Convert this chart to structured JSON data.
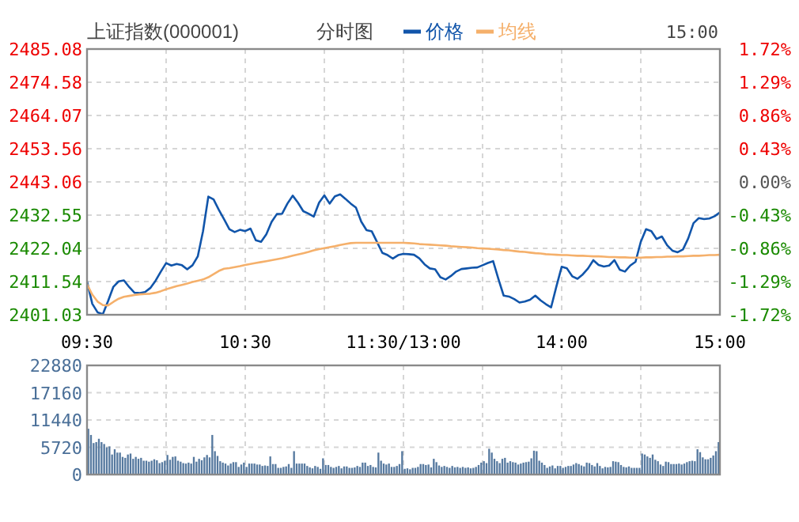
{
  "chart_data": [
    {
      "type": "line",
      "title": "上证指数(000001)",
      "subtitle": "分时图",
      "legend": "top",
      "grid": true,
      "marker": "none",
      "line_style": "solid",
      "annotations": [
        "15:00"
      ],
      "categories": [
        "09:30",
        null,
        null,
        null,
        null,
        null,
        null,
        null,
        null,
        null,
        null,
        null,
        null,
        null,
        null,
        null,
        null,
        null,
        null,
        null,
        null,
        null,
        null,
        null,
        null,
        null,
        null,
        null,
        null,
        null,
        "10:30",
        null,
        null,
        null,
        null,
        null,
        null,
        null,
        null,
        null,
        null,
        null,
        null,
        null,
        null,
        null,
        null,
        null,
        null,
        null,
        null,
        null,
        null,
        null,
        null,
        null,
        null,
        null,
        null,
        null,
        "11:30/13:00",
        null,
        null,
        null,
        null,
        null,
        null,
        null,
        null,
        null,
        null,
        null,
        null,
        null,
        null,
        null,
        null,
        null,
        null,
        null,
        null,
        null,
        null,
        null,
        null,
        null,
        null,
        null,
        null,
        null,
        "14:00",
        null,
        null,
        null,
        null,
        null,
        null,
        null,
        null,
        null,
        null,
        null,
        null,
        null,
        null,
        null,
        null,
        null,
        null,
        null,
        null,
        null,
        null,
        null,
        null,
        null,
        null,
        null,
        null,
        null,
        "15:00"
      ],
      "ylim": [
        2401.03,
        2485.08
      ],
      "yticks": [
        2401.03,
        2411.54,
        2422.04,
        2432.55,
        2443.06,
        2453.56,
        2464.07,
        2474.58,
        2485.08
      ],
      "y2lim": [
        -1.72,
        1.72
      ],
      "y2ticks": [
        {
          "value": -1.72,
          "label": "-1.72%"
        },
        {
          "value": -1.29,
          "label": "-1.29%"
        },
        {
          "value": -0.86,
          "label": "-0.86%"
        },
        {
          "value": -0.43,
          "label": "-0.43%"
        },
        {
          "value": 0,
          "label": "0.00%"
        },
        {
          "value": 0.43,
          "label": "0.43%"
        },
        {
          "value": 0.86,
          "label": "0.86%"
        },
        {
          "value": 1.29,
          "label": "1.29%"
        },
        {
          "value": 1.72,
          "label": "1.72%"
        }
      ],
      "series": [
        {
          "name": "价格",
          "color": "#1155aa",
          "values": [
            2411.6,
            2404.5,
            2401.8,
            2401.2,
            2405.4,
            2409.9,
            2411.6,
            2411.9,
            2409.8,
            2408.0,
            2407.9,
            2408.2,
            2409.5,
            2411.8,
            2414.7,
            2417.4,
            2416.6,
            2417.1,
            2416.7,
            2415.4,
            2416.7,
            2419.5,
            2427.5,
            2438.4,
            2437.5,
            2434.2,
            2431.2,
            2428.1,
            2427.2,
            2427.9,
            2427.5,
            2428.3,
            2424.6,
            2424.1,
            2426.5,
            2430.4,
            2432.9,
            2433.0,
            2436.2,
            2438.7,
            2436.5,
            2433.8,
            2433.0,
            2432.1,
            2436.5,
            2438.8,
            2436.2,
            2438.5,
            2439.1,
            2437.7,
            2436.2,
            2434.9,
            2430.5,
            2427.8,
            2427.4,
            2424.0,
            2420.6,
            2419.9,
            2418.8,
            2419.9,
            2420.3,
            2420.2,
            2420.0,
            2418.9,
            2417.0,
            2415.7,
            2415.4,
            2412.9,
            2412.2,
            2413.3,
            2414.7,
            2415.5,
            2415.7,
            2415.9,
            2416.0,
            2416.7,
            2417.4,
            2418.0,
            2412.4,
            2407.1,
            2406.8,
            2406.0,
            2404.9,
            2405.2,
            2405.8,
            2407.1,
            2405.6,
            2404.4,
            2403.4,
            2410.0,
            2416.2,
            2415.7,
            2413.2,
            2412.4,
            2413.8,
            2415.7,
            2418.3,
            2416.8,
            2416.3,
            2416.6,
            2418.3,
            2415.3,
            2414.7,
            2416.6,
            2417.8,
            2424.1,
            2428.1,
            2427.5,
            2425.0,
            2425.8,
            2423.0,
            2421.3,
            2420.8,
            2421.7,
            2425.2,
            2430.0,
            2431.6,
            2431.3,
            2431.5,
            2432.2,
            2433.4
          ]
        },
        {
          "name": "均线",
          "color": "#f5b06b",
          "values": [
            2410.7,
            2407.4,
            2405.2,
            2404.1,
            2404.0,
            2405.1,
            2406.1,
            2406.7,
            2407.0,
            2407.3,
            2407.5,
            2407.6,
            2407.7,
            2408.0,
            2408.5,
            2409.1,
            2409.6,
            2410.1,
            2410.5,
            2410.9,
            2411.4,
            2411.8,
            2412.2,
            2412.9,
            2413.9,
            2414.9,
            2415.6,
            2415.8,
            2416.1,
            2416.4,
            2416.8,
            2417.1,
            2417.4,
            2417.7,
            2418.0,
            2418.3,
            2418.6,
            2418.9,
            2419.3,
            2419.7,
            2420.1,
            2420.5,
            2420.9,
            2421.4,
            2421.8,
            2422.1,
            2422.4,
            2422.7,
            2423.1,
            2423.4,
            2423.7,
            2423.8,
            2423.8,
            2423.8,
            2423.8,
            2423.8,
            2423.8,
            2423.8,
            2423.8,
            2423.8,
            2423.8,
            2423.7,
            2423.6,
            2423.4,
            2423.3,
            2423.2,
            2423.1,
            2423.0,
            2422.9,
            2422.7,
            2422.6,
            2422.5,
            2422.4,
            2422.3,
            2422.1,
            2422.0,
            2421.9,
            2421.8,
            2421.7,
            2421.5,
            2421.4,
            2421.2,
            2421.0,
            2420.9,
            2420.7,
            2420.5,
            2420.4,
            2420.2,
            2420.1,
            2420.0,
            2419.9,
            2419.9,
            2419.8,
            2419.7,
            2419.7,
            2419.6,
            2419.5,
            2419.5,
            2419.4,
            2419.3,
            2419.3,
            2419.2,
            2419.2,
            2419.1,
            2419.1,
            2419.1,
            2419.2,
            2419.2,
            2419.3,
            2419.3,
            2419.4,
            2419.4,
            2419.5,
            2419.5,
            2419.6,
            2419.7,
            2419.7,
            2419.8,
            2419.9,
            2419.9,
            2420.0
          ]
        }
      ]
    },
    {
      "type": "bar",
      "grid": true,
      "tick_labels": "y",
      "ylim": [
        0,
        22880
      ],
      "yticks": [
        0,
        5720,
        11440,
        17160,
        22880
      ],
      "categories": [
        null,
        null,
        null,
        null,
        null,
        null,
        null,
        null,
        null,
        null,
        null,
        null,
        null,
        null,
        null,
        null,
        null,
        null,
        null,
        null,
        null,
        null,
        null,
        null,
        null,
        null,
        null,
        null,
        null,
        null,
        null,
        null,
        null,
        null,
        null,
        null,
        null,
        null,
        null,
        null,
        null,
        null,
        null,
        null,
        null,
        null,
        null,
        null,
        null,
        null,
        null,
        null,
        null,
        null,
        null,
        null,
        null,
        null,
        null,
        null,
        null,
        null,
        null,
        null,
        null,
        null,
        null,
        null,
        null,
        null,
        null,
        null,
        null,
        null,
        null,
        null,
        null,
        null,
        null,
        null,
        null,
        null,
        null,
        null,
        null,
        null,
        null,
        null,
        null,
        null,
        null,
        null,
        null,
        null,
        null,
        null,
        null,
        null,
        null,
        null,
        null,
        null,
        null,
        null,
        null,
        null,
        null,
        null,
        null,
        null,
        null,
        null,
        null,
        null,
        null,
        null,
        null,
        null,
        null,
        null,
        null,
        null,
        null,
        null,
        null,
        null,
        null,
        null,
        null,
        null,
        null,
        null,
        null,
        null,
        null,
        null,
        null,
        null,
        null,
        null,
        null,
        null,
        null,
        null,
        null,
        null,
        null,
        null,
        null,
        null,
        null,
        null,
        null,
        null,
        null,
        null,
        null,
        null,
        null,
        null,
        null,
        null,
        null,
        null,
        null,
        null,
        null,
        null,
        null,
        null,
        null,
        null,
        null,
        null,
        null,
        null,
        null,
        null,
        null,
        null,
        null,
        null,
        null,
        null,
        null,
        null,
        null,
        null,
        null,
        null,
        null,
        null,
        null,
        null,
        null,
        null,
        null,
        null,
        null,
        null,
        null,
        null,
        null,
        null,
        null,
        null,
        null,
        null,
        null,
        null,
        null,
        null,
        null,
        null,
        null,
        null,
        null,
        null,
        null,
        null,
        null,
        null,
        null,
        null,
        null,
        null,
        null,
        null,
        null,
        null,
        null,
        null,
        null,
        null,
        null,
        null,
        null,
        null,
        null,
        null
      ],
      "color": "#56799f",
      "values": [
        9600,
        8300,
        6600,
        6800,
        7500,
        6800,
        6400,
        5700,
        5900,
        4200,
        5300,
        4600,
        4600,
        3700,
        3500,
        4200,
        4400,
        3300,
        3700,
        3300,
        3500,
        2900,
        2900,
        2700,
        2900,
        3200,
        3000,
        2400,
        2600,
        2900,
        4100,
        3100,
        3700,
        3800,
        2900,
        2700,
        2400,
        2300,
        2500,
        2300,
        3700,
        2700,
        3300,
        3000,
        3600,
        4100,
        3600,
        8300,
        4900,
        3900,
        2800,
        2500,
        2300,
        1900,
        2300,
        2600,
        2600,
        1600,
        2100,
        2500,
        1600,
        2300,
        2300,
        2300,
        2100,
        2100,
        1800,
        1900,
        1800,
        3800,
        2200,
        2200,
        1400,
        1400,
        1600,
        1700,
        2200,
        1400,
        4900,
        2300,
        2300,
        2300,
        2300,
        1800,
        1500,
        1300,
        1800,
        1600,
        1200,
        3400,
        2000,
        2000,
        1600,
        1400,
        1600,
        1800,
        1300,
        1700,
        1700,
        1400,
        1400,
        1500,
        1800,
        1600,
        2500,
        2500,
        1800,
        2000,
        1600,
        1500,
        4600,
        2900,
        2300,
        2100,
        2300,
        1600,
        1600,
        1800,
        2200,
        4900,
        1200,
        1300,
        1100,
        1400,
        1400,
        1600,
        2200,
        2200,
        2000,
        2100,
        1500,
        3300,
        2600,
        1900,
        1600,
        1800,
        1600,
        1400,
        1800,
        1500,
        1600,
        1400,
        1600,
        1400,
        1500,
        1300,
        1400,
        1600,
        2000,
        2500,
        2800,
        2400,
        5400,
        4600,
        3300,
        2800,
        2400,
        3300,
        3500,
        2500,
        2800,
        2600,
        2500,
        2100,
        2300,
        2500,
        2600,
        2700,
        3400,
        5000,
        4900,
        2900,
        2500,
        2000,
        1400,
        1700,
        1900,
        1300,
        1800,
        1800,
        1400,
        1600,
        1800,
        1800,
        2100,
        2400,
        2200,
        1900,
        1700,
        2500,
        2400,
        2000,
        1700,
        2400,
        1800,
        1300,
        1600,
        1500,
        1600,
        2800,
        2700,
        2600,
        2000,
        1600,
        1500,
        1700,
        1400,
        1400,
        1400,
        1400,
        4400,
        4200,
        3800,
        3500,
        4200,
        3100,
        2800,
        2100,
        1800,
        2700,
        2600,
        2200,
        2200,
        2200,
        2300,
        2100,
        2300,
        2600,
        2800,
        2900,
        2800,
        5300,
        4700,
        3600,
        3200,
        3200,
        3500,
        4000,
        4900,
        6800
      ]
    }
  ]
}
